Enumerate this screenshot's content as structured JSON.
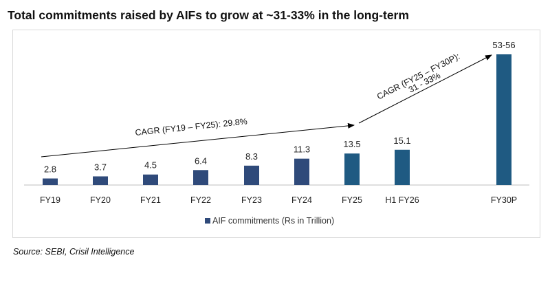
{
  "chart_data": {
    "type": "bar",
    "title": "Total commitments raised by AIFs to grow at ~31-33% in the long-term",
    "categories": [
      "FY19",
      "FY20",
      "FY21",
      "FY22",
      "FY23",
      "FY24",
      "FY25",
      "H1 FY26",
      "FY30P"
    ],
    "series": [
      {
        "name": "AIF commitments (Rs in Trillion)",
        "values": [
          2.8,
          3.7,
          4.5,
          6.4,
          8.3,
          11.3,
          13.5,
          15.1,
          56
        ],
        "value_labels": [
          "2.8",
          "3.7",
          "4.5",
          "6.4",
          "8.3",
          "11.3",
          "13.5",
          "15.1",
          "53-56"
        ],
        "projected_range": {
          "category": "FY30P",
          "low": 53,
          "high": 56
        }
      }
    ],
    "ylim": [
      0,
      56
    ],
    "xlabel": "",
    "ylabel": "",
    "grid": false,
    "legend": "bottom-center",
    "annotations": [
      {
        "text": "CAGR (FY19 – FY25): 29.8%",
        "from": "FY19",
        "to": "FY25"
      },
      {
        "text_line1": "CAGR (FY25 – FY30P):",
        "text_line2": "31 - 33%",
        "from": "FY25",
        "to": "FY30P"
      }
    ],
    "colors": {
      "bar": "#1f5a82",
      "bar_dark": "#2f4a7a",
      "axis": "#bfbfbf",
      "arrow": "#000000"
    }
  },
  "source": "Source: SEBI, Crisil Intelligence"
}
